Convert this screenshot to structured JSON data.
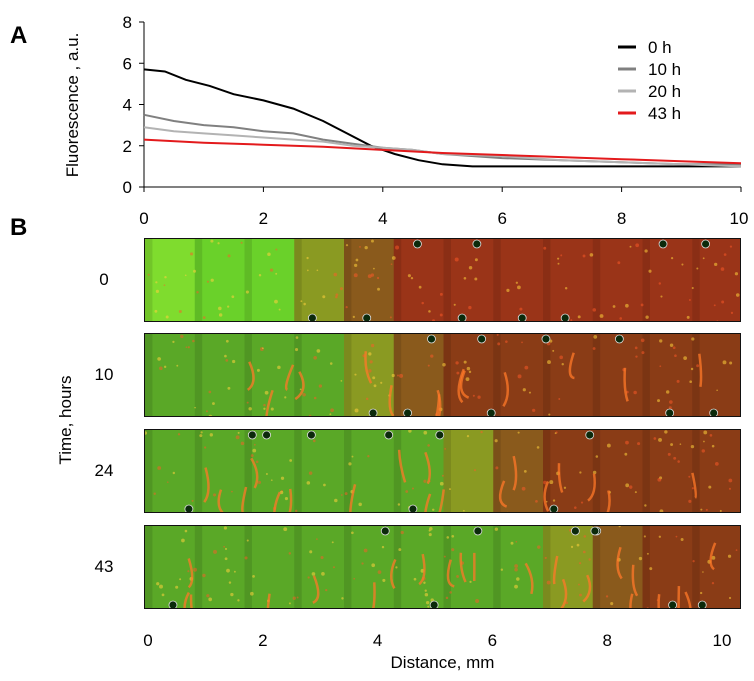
{
  "panels": {
    "a_label": "A",
    "b_label": "B"
  },
  "chart_data": {
    "type": "line",
    "ylabel": "Fluorescence , a.u.",
    "xlabel": "",
    "xlim": [
      0,
      10
    ],
    "ylim": [
      0,
      8
    ],
    "yticks": [
      0,
      2,
      4,
      6,
      8
    ],
    "xticks": [
      0,
      2,
      4,
      6,
      8,
      10
    ],
    "legend_position": "top-right",
    "grid": false,
    "series": [
      {
        "name": "0 h",
        "color": "#000000",
        "x": [
          0,
          0.35,
          0.7,
          1.1,
          1.5,
          2.0,
          2.5,
          3.0,
          3.4,
          3.8,
          4.2,
          4.6,
          5.0,
          5.5,
          6.0,
          7.0,
          8.0,
          9.0,
          10.0
        ],
        "y": [
          5.7,
          5.6,
          5.2,
          4.9,
          4.5,
          4.2,
          3.8,
          3.2,
          2.6,
          2.0,
          1.6,
          1.3,
          1.1,
          1.0,
          1.0,
          1.0,
          1.0,
          1.0,
          1.0
        ]
      },
      {
        "name": "10 h",
        "color": "#808080",
        "x": [
          0,
          0.5,
          1.0,
          1.5,
          2.0,
          2.5,
          3.0,
          3.5,
          4.0,
          4.5,
          5.0,
          6.0,
          7.0,
          8.0,
          9.0,
          10.0
        ],
        "y": [
          3.5,
          3.2,
          3.0,
          2.9,
          2.7,
          2.6,
          2.3,
          2.1,
          1.9,
          1.8,
          1.6,
          1.4,
          1.3,
          1.2,
          1.1,
          1.1
        ]
      },
      {
        "name": "20 h",
        "color": "#b3b3b3",
        "x": [
          0,
          0.5,
          1.0,
          1.5,
          2.0,
          2.5,
          3.0,
          3.5,
          4.0,
          4.5,
          5.0,
          6.0,
          7.0,
          8.0,
          9.0,
          10.0
        ],
        "y": [
          2.9,
          2.7,
          2.6,
          2.5,
          2.4,
          2.3,
          2.2,
          2.0,
          1.9,
          1.8,
          1.6,
          1.5,
          1.3,
          1.2,
          1.1,
          1.0
        ]
      },
      {
        "name": "43 h",
        "color": "#e31a1c",
        "x": [
          0,
          1.0,
          2.0,
          3.0,
          4.0,
          5.0,
          6.0,
          7.0,
          8.0,
          9.0,
          10.0
        ],
        "y": [
          2.3,
          2.15,
          2.05,
          1.95,
          1.8,
          1.65,
          1.55,
          1.45,
          1.35,
          1.25,
          1.15
        ]
      }
    ]
  },
  "panel_b": {
    "ylabel": "Time, hours",
    "xlabel": "Distance, mm",
    "xticks": [
      "0",
      "2",
      "4",
      "6",
      "8",
      "10"
    ],
    "xlim": [
      0,
      10
    ],
    "rows": [
      {
        "time": "0",
        "green_until_mm": 3.6
      },
      {
        "time": "10",
        "green_until_mm": 4.5
      },
      {
        "time": "24",
        "green_until_mm": 6.0
      },
      {
        "time": "43",
        "green_until_mm": 7.6
      }
    ]
  }
}
